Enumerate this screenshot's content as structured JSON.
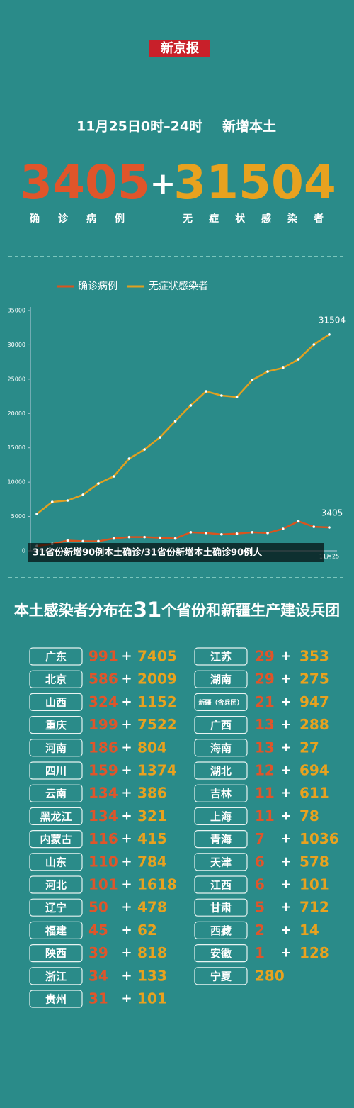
{
  "header": {
    "logo": "新京报",
    "period": "11月25日0时–24时",
    "subject": "新增本土",
    "confirmed_total": "3405",
    "plus": "+",
    "asymptomatic_total": "31504",
    "confirmed_label": "确诊病例",
    "asymptomatic_label": "无症状感染者"
  },
  "chart_data": {
    "type": "line",
    "categories": [
      null,
      null,
      null,
      null,
      null,
      null,
      null,
      null,
      null,
      null,
      null,
      null,
      null,
      null,
      null,
      null,
      null,
      null,
      null,
      "11月25"
    ],
    "series": [
      {
        "name": "确诊病例",
        "color": "#d9541e",
        "values": [
          700,
          1000,
          1500,
          1400,
          1400,
          1800,
          2000,
          2000,
          1900,
          1800,
          2700,
          2600,
          2400,
          2500,
          2700,
          2600,
          3200,
          4300,
          3500,
          3405
        ]
      },
      {
        "name": "无症状感染者",
        "color": "#e0a020",
        "values": [
          5370,
          7120,
          7330,
          8160,
          9800,
          10840,
          13420,
          14760,
          16520,
          18890,
          21170,
          23230,
          22610,
          22400,
          24880,
          26120,
          26640,
          27880,
          30040,
          31504
        ]
      }
    ],
    "ylim": [
      0,
      35000
    ],
    "yticks": [
      0,
      5000,
      10000,
      15000,
      20000,
      25000,
      30000,
      35000
    ],
    "legend": "top",
    "caption": "31省份新增90例本土确诊/31省份新增本土确诊90例人"
  },
  "section": {
    "title_parts": [
      "本土感染者分布在",
      "31",
      "个省份和新疆生产建设兵团"
    ]
  },
  "table": {
    "separator": "+",
    "rows": [
      [
        "广东",
        "991",
        "7405"
      ],
      [
        "北京",
        "586",
        "2009"
      ],
      [
        "山西",
        "324",
        "1152"
      ],
      [
        "重庆",
        "199",
        "7522"
      ],
      [
        "河南",
        "186",
        "804"
      ],
      [
        "四川",
        "159",
        "1374"
      ],
      [
        "云南",
        "134",
        "386"
      ],
      [
        "黑龙江",
        "134",
        "321"
      ],
      [
        "内蒙古",
        "116",
        "415"
      ],
      [
        "山东",
        "110",
        "784"
      ],
      [
        "河北",
        "101",
        "1618"
      ],
      [
        "辽宁",
        "50",
        "478"
      ],
      [
        "福建",
        "45",
        "62"
      ],
      [
        "陕西",
        "39",
        "818"
      ],
      [
        "浙江",
        "34",
        "133"
      ],
      [
        "贵州",
        "31",
        "101"
      ],
      [
        "江苏",
        "29",
        "353"
      ],
      [
        "湖南",
        "29",
        "275"
      ],
      [
        "新疆（含兵团）",
        "21",
        "947"
      ],
      [
        "广西",
        "13",
        "288"
      ],
      [
        "海南",
        "13",
        "27"
      ],
      [
        "湖北",
        "12",
        "694"
      ],
      [
        "吉林",
        "11",
        "611"
      ],
      [
        "上海",
        "11",
        "78"
      ],
      [
        "青海",
        "7",
        "1036"
      ],
      [
        "天津",
        "6",
        "578"
      ],
      [
        "江西",
        "6",
        "101"
      ],
      [
        "甘肃",
        "5",
        "712"
      ],
      [
        "西藏",
        "2",
        "14"
      ],
      [
        "安徽",
        "1",
        "128"
      ],
      [
        "宁夏",
        "280"
      ]
    ]
  }
}
